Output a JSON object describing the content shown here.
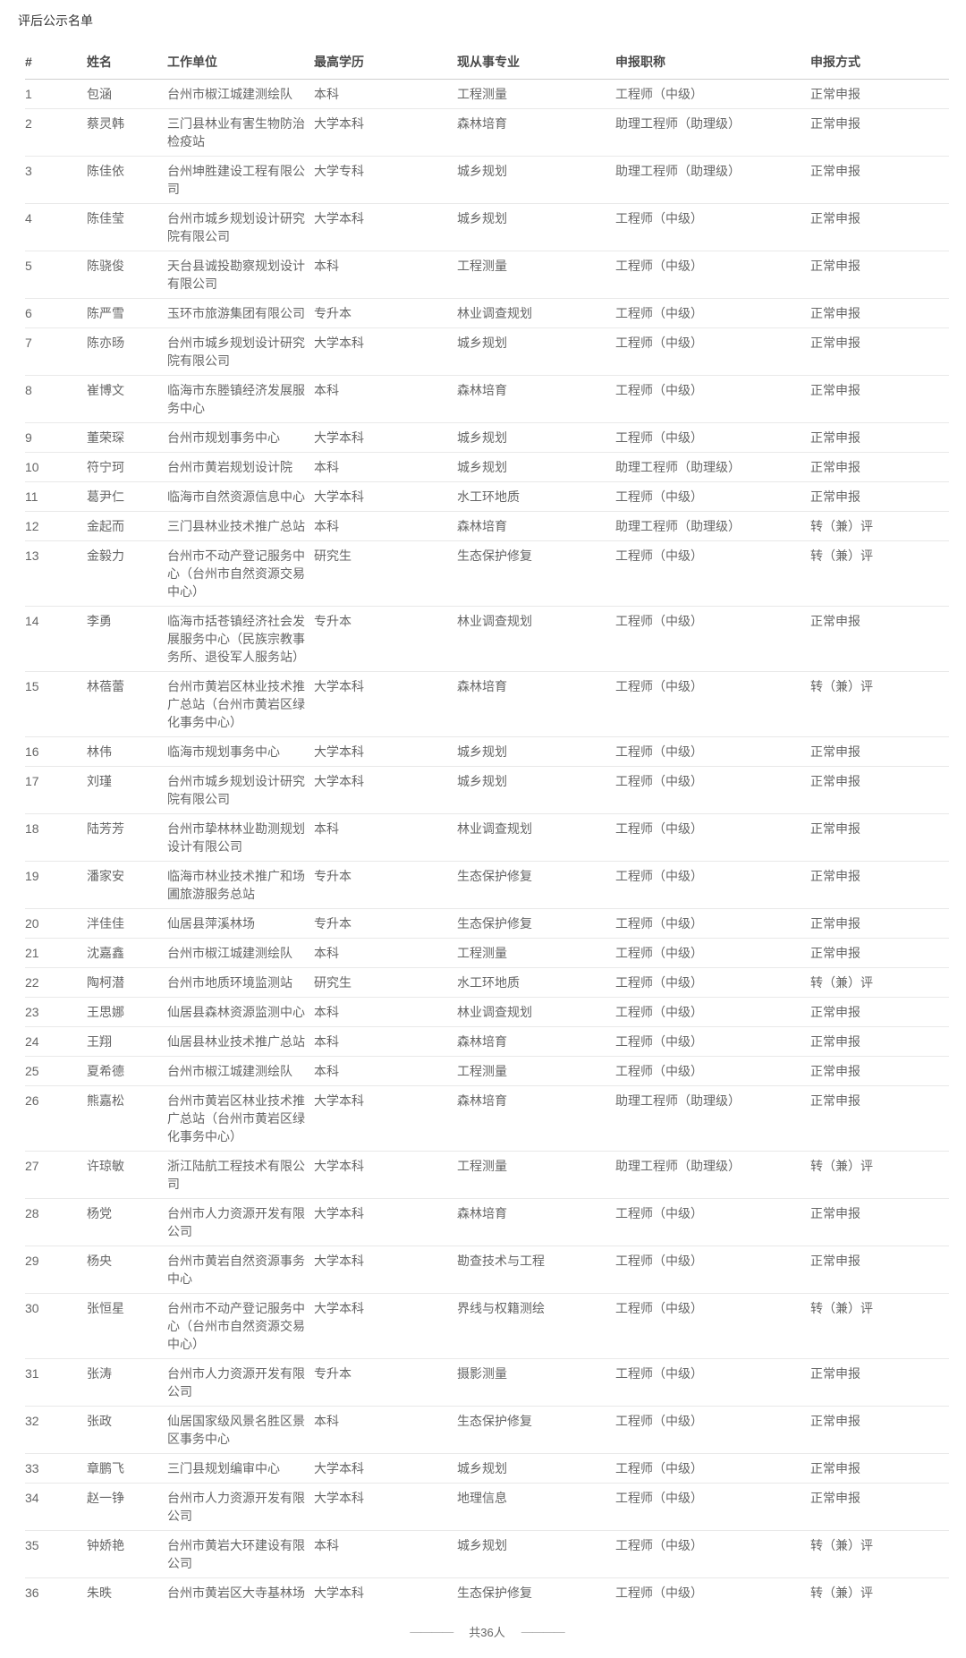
{
  "page": {
    "title": "评后公示名单",
    "footer_total": "共36人",
    "footer_dash": "————"
  },
  "theme": {
    "text_color": "#666666",
    "header_text_color": "#4a4a4a",
    "row_border_color": "#e9e9e9",
    "header_border_color": "#d0d0d0"
  },
  "table": {
    "columns": [
      "#",
      "姓名",
      "工作单位",
      "最高学历",
      "现从事专业",
      "申报职称",
      "申报方式"
    ],
    "rows": [
      [
        "1",
        "包涵",
        "台州市椒江城建测绘队",
        "本科",
        "工程测量",
        "工程师（中级）",
        "正常申报"
      ],
      [
        "2",
        "蔡灵韩",
        "三门县林业有害生物防治检疫站",
        "大学本科",
        "森林培育",
        "助理工程师（助理级）",
        "正常申报"
      ],
      [
        "3",
        "陈佳依",
        "台州坤胜建设工程有限公司",
        "大学专科",
        "城乡规划",
        "助理工程师（助理级）",
        "正常申报"
      ],
      [
        "4",
        "陈佳莹",
        "台州市城乡规划设计研究院有限公司",
        "大学本科",
        "城乡规划",
        "工程师（中级）",
        "正常申报"
      ],
      [
        "5",
        "陈骁俊",
        "天台县诚投勘察规划设计有限公司",
        "本科",
        "工程测量",
        "工程师（中级）",
        "正常申报"
      ],
      [
        "6",
        "陈严雪",
        "玉环市旅游集团有限公司",
        "专升本",
        "林业调查规划",
        "工程师（中级）",
        "正常申报"
      ],
      [
        "7",
        "陈亦旸",
        "台州市城乡规划设计研究院有限公司",
        "大学本科",
        "城乡规划",
        "工程师（中级）",
        "正常申报"
      ],
      [
        "8",
        "崔博文",
        "临海市东塍镇经济发展服务中心",
        "本科",
        "森林培育",
        "工程师（中级）",
        "正常申报"
      ],
      [
        "9",
        "董荣琛",
        "台州市规划事务中心",
        "大学本科",
        "城乡规划",
        "工程师（中级）",
        "正常申报"
      ],
      [
        "10",
        "符宁珂",
        "台州市黄岩规划设计院",
        "本科",
        "城乡规划",
        "助理工程师（助理级）",
        "正常申报"
      ],
      [
        "11",
        "葛尹仁",
        "临海市自然资源信息中心",
        "大学本科",
        "水工环地质",
        "工程师（中级）",
        "正常申报"
      ],
      [
        "12",
        "金起而",
        "三门县林业技术推广总站",
        "本科",
        "森林培育",
        "助理工程师（助理级）",
        "转（兼）评"
      ],
      [
        "13",
        "金毅力",
        "台州市不动产登记服务中心（台州市自然资源交易中心）",
        "研究生",
        "生态保护修复",
        "工程师（中级）",
        "转（兼）评"
      ],
      [
        "14",
        "李勇",
        "临海市括苍镇经济社会发展服务中心（民族宗教事务所、退役军人服务站）",
        "专升本",
        "林业调查规划",
        "工程师（中级）",
        "正常申报"
      ],
      [
        "15",
        "林蓓蕾",
        "台州市黄岩区林业技术推广总站（台州市黄岩区绿化事务中心）",
        "大学本科",
        "森林培育",
        "工程师（中级）",
        "转（兼）评"
      ],
      [
        "16",
        "林伟",
        "临海市规划事务中心",
        "大学本科",
        "城乡规划",
        "工程师（中级）",
        "正常申报"
      ],
      [
        "17",
        "刘瑾",
        "台州市城乡规划设计研究院有限公司",
        "大学本科",
        "城乡规划",
        "工程师（中级）",
        "正常申报"
      ],
      [
        "18",
        "陆芳芳",
        "台州市挚林林业勘测规划设计有限公司",
        "本科",
        "林业调查规划",
        "工程师（中级）",
        "正常申报"
      ],
      [
        "19",
        "潘家安",
        "临海市林业技术推广和场圃旅游服务总站",
        "专升本",
        "生态保护修复",
        "工程师（中级）",
        "正常申报"
      ],
      [
        "20",
        "泮佳佳",
        "仙居县萍溪林场",
        "专升本",
        "生态保护修复",
        "工程师（中级）",
        "正常申报"
      ],
      [
        "21",
        "沈嘉鑫",
        "台州市椒江城建测绘队",
        "本科",
        "工程测量",
        "工程师（中级）",
        "正常申报"
      ],
      [
        "22",
        "陶柯潜",
        "台州市地质环境监测站",
        "研究生",
        "水工环地质",
        "工程师（中级）",
        "转（兼）评"
      ],
      [
        "23",
        "王思娜",
        "仙居县森林资源监测中心",
        "本科",
        "林业调查规划",
        "工程师（中级）",
        "正常申报"
      ],
      [
        "24",
        "王翔",
        "仙居县林业技术推广总站",
        "本科",
        "森林培育",
        "工程师（中级）",
        "正常申报"
      ],
      [
        "25",
        "夏希德",
        "台州市椒江城建测绘队",
        "本科",
        "工程测量",
        "工程师（中级）",
        "正常申报"
      ],
      [
        "26",
        "熊嘉松",
        "台州市黄岩区林业技术推广总站（台州市黄岩区绿化事务中心）",
        "大学本科",
        "森林培育",
        "助理工程师（助理级）",
        "正常申报"
      ],
      [
        "27",
        "许琼敏",
        "浙江陆航工程技术有限公司",
        "大学本科",
        "工程测量",
        "助理工程师（助理级）",
        "转（兼）评"
      ],
      [
        "28",
        "杨党",
        "台州市人力资源开发有限公司",
        "大学本科",
        "森林培育",
        "工程师（中级）",
        "正常申报"
      ],
      [
        "29",
        "杨央",
        "台州市黄岩自然资源事务中心",
        "大学本科",
        "勘查技术与工程",
        "工程师（中级）",
        "正常申报"
      ],
      [
        "30",
        "张恒星",
        "台州市不动产登记服务中心（台州市自然资源交易中心）",
        "大学本科",
        "界线与权籍测绘",
        "工程师（中级）",
        "转（兼）评"
      ],
      [
        "31",
        "张涛",
        "台州市人力资源开发有限公司",
        "专升本",
        "摄影测量",
        "工程师（中级）",
        "正常申报"
      ],
      [
        "32",
        "张政",
        "仙居国家级风景名胜区景区事务中心",
        "本科",
        "生态保护修复",
        "工程师（中级）",
        "正常申报"
      ],
      [
        "33",
        "章鹏飞",
        "三门县规划编审中心",
        "大学本科",
        "城乡规划",
        "工程师（中级）",
        "正常申报"
      ],
      [
        "34",
        "赵一铮",
        "台州市人力资源开发有限公司",
        "大学本科",
        "地理信息",
        "工程师（中级）",
        "正常申报"
      ],
      [
        "35",
        "钟娇艳",
        "台州市黄岩大环建设有限公司",
        "本科",
        "城乡规划",
        "工程师（中级）",
        "转（兼）评"
      ],
      [
        "36",
        "朱昳",
        "台州市黄岩区大寺基林场",
        "大学本科",
        "生态保护修复",
        "工程师（中级）",
        "转（兼）评"
      ]
    ]
  }
}
